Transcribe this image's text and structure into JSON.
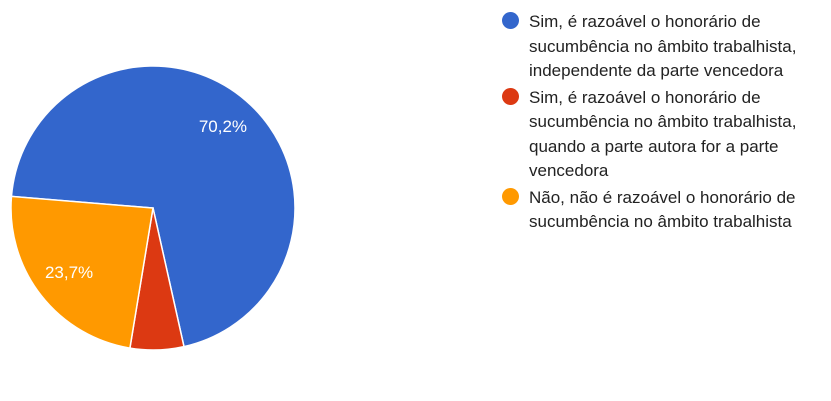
{
  "chart_data": {
    "type": "pie",
    "categories": [
      "Sim, é razoável o honorário de sucumbência no âmbito trabalhista, independente da parte vencedora",
      "Sim, é razoável o honorário de sucumbência no âmbito trabalhista, quando a parte autora for a parte vencedora",
      "Não, não é razoável o honorário de sucumbência no âmbito trabalhista"
    ],
    "values": [
      70.2,
      6.1,
      23.7
    ],
    "value_labels": [
      "70,2%",
      null,
      "23,7%"
    ],
    "colors": [
      "#3366cc",
      "#dc3912",
      "#ff9900"
    ]
  }
}
